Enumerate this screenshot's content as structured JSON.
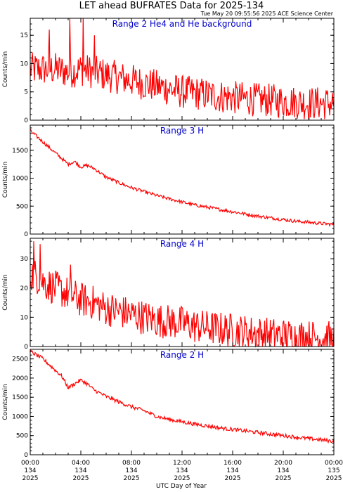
{
  "title": "LET ahead BUFRATES Data for 2025-134",
  "timestamp": "Tue May 20 09:55:56 2025 ACE Science Center",
  "xlabel": "UTC Day of Year",
  "colors": {
    "series": "#ff0000",
    "panel_title": "#0000cc",
    "axes": "#000000"
  },
  "chart_data": [
    {
      "type": "line",
      "panel_title": "Range 2 He4 and He background",
      "ylabel": "Counts/min",
      "xlim": [
        0,
        24
      ],
      "ylim": [
        0,
        18
      ],
      "yticks": [
        0,
        5,
        10,
        15
      ],
      "x_unit": "hours UTC, day 134",
      "series": [
        {
          "x": [
            0,
            1,
            2,
            3,
            4,
            5,
            6,
            7,
            8,
            9,
            10,
            11,
            12,
            13,
            14,
            15,
            16,
            17,
            18,
            19,
            20,
            21,
            22,
            23,
            24
          ],
          "values": [
            9,
            9,
            9,
            8.5,
            9,
            8.5,
            8,
            7.5,
            7,
            6.5,
            6,
            5.5,
            5,
            4.8,
            4.5,
            4.2,
            4,
            3.8,
            3.6,
            3.5,
            3.3,
            3.2,
            3,
            3,
            3
          ],
          "noise": 3,
          "spikes": [
            [
              3.1,
              18
            ],
            [
              4.2,
              18
            ],
            [
              1.5,
              16
            ],
            [
              5.1,
              15
            ]
          ]
        }
      ]
    },
    {
      "type": "line",
      "panel_title": "Range 3 H",
      "ylabel": "Counts/min",
      "xlim": [
        0,
        24
      ],
      "ylim": [
        0,
        1950
      ],
      "yticks": [
        0,
        500,
        1000,
        1500
      ],
      "x_unit": "hours UTC, day 134",
      "series": [
        {
          "x": [
            0,
            0.5,
            1,
            1.5,
            2,
            2.5,
            3,
            3.5,
            4,
            4.5,
            5,
            5.5,
            6,
            7,
            8,
            9,
            10,
            11,
            12,
            13,
            14,
            15,
            16,
            17,
            18,
            19,
            20,
            21,
            22,
            23,
            24
          ],
          "values": [
            1850,
            1750,
            1650,
            1550,
            1450,
            1350,
            1250,
            1300,
            1200,
            1230,
            1180,
            1100,
            1020,
            920,
            830,
            760,
            690,
            630,
            575,
            520,
            480,
            440,
            400,
            360,
            320,
            290,
            260,
            230,
            210,
            190,
            170
          ],
          "noise": 30,
          "spikes": []
        }
      ]
    },
    {
      "type": "line",
      "panel_title": "Range 4 H",
      "ylabel": "Counts/min",
      "xlim": [
        0,
        24
      ],
      "ylim": [
        0,
        37
      ],
      "yticks": [
        0,
        10,
        20,
        30
      ],
      "x_unit": "hours UTC, day 134",
      "series": [
        {
          "x": [
            0,
            0.5,
            1,
            2,
            3,
            4,
            5,
            6,
            7,
            8,
            9,
            10,
            11,
            12,
            13,
            14,
            15,
            16,
            17,
            18,
            19,
            20,
            21,
            22,
            23,
            24
          ],
          "values": [
            25,
            24,
            22,
            20,
            18,
            16,
            15,
            13,
            12,
            11,
            10,
            9,
            8.5,
            8,
            7,
            6.5,
            6,
            5.5,
            5,
            4.5,
            4,
            3.8,
            3.5,
            3.2,
            3,
            2.8
          ],
          "noise": 6,
          "spikes": [
            [
              0.3,
              36
            ],
            [
              0.8,
              35
            ],
            [
              3.2,
              28
            ]
          ]
        }
      ]
    },
    {
      "type": "line",
      "panel_title": "Range 2 H",
      "ylabel": "Counts/min",
      "xlim": [
        0,
        24
      ],
      "ylim": [
        0,
        2750
      ],
      "yticks": [
        0,
        500,
        1000,
        1500,
        2000,
        2500
      ],
      "x_unit": "hours UTC, day 134",
      "series": [
        {
          "x": [
            0,
            0.5,
            1,
            1.5,
            2,
            2.5,
            3,
            3.5,
            4,
            4.5,
            5,
            6,
            7,
            8,
            9,
            10,
            11,
            12,
            13,
            14,
            15,
            16,
            17,
            18,
            19,
            20,
            21,
            22,
            23,
            24
          ],
          "values": [
            2700,
            2600,
            2500,
            2350,
            2200,
            2050,
            1750,
            1850,
            1950,
            1850,
            1700,
            1520,
            1380,
            1250,
            1150,
            1000,
            920,
            860,
            800,
            750,
            700,
            660,
            620,
            580,
            540,
            500,
            460,
            420,
            390,
            350
          ],
          "noise": 50,
          "spikes": []
        }
      ]
    }
  ],
  "xticks": [
    {
      "hour": 0,
      "l1": "00:00",
      "l2": "134",
      "l3": "2025"
    },
    {
      "hour": 4,
      "l1": "04:00",
      "l2": "134",
      "l3": "2025"
    },
    {
      "hour": 8,
      "l1": "08:00",
      "l2": "134",
      "l3": "2025"
    },
    {
      "hour": 12,
      "l1": "12:00",
      "l2": "134",
      "l3": "2025"
    },
    {
      "hour": 16,
      "l1": "16:00",
      "l2": "134",
      "l3": "2025"
    },
    {
      "hour": 20,
      "l1": "20:00",
      "l2": "134",
      "l3": "2025"
    },
    {
      "hour": 24,
      "l1": "00:00",
      "l2": "135",
      "l3": "2025"
    }
  ]
}
